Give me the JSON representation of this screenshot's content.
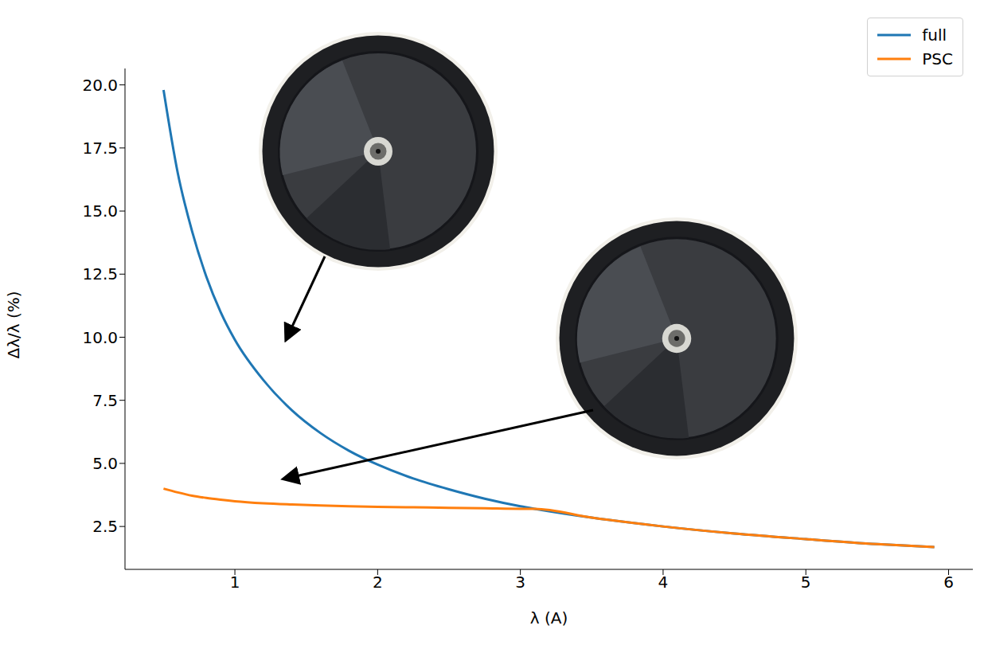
{
  "chart_data": {
    "type": "line",
    "x_label": "λ (A)",
    "y_label": "Δλ/λ (%)",
    "x": [
      0.5,
      0.6,
      0.7,
      0.8,
      0.9,
      1.0,
      1.2,
      1.4,
      1.6,
      1.8,
      2.0,
      2.25,
      2.5,
      2.75,
      3.0,
      3.1,
      3.5,
      4.0,
      4.5,
      5.0,
      5.5,
      5.9
    ],
    "series": [
      {
        "name": "full",
        "color": "#1f77b4",
        "values": [
          19.8,
          16.5,
          14.2,
          12.4,
          11.0,
          9.9,
          8.3,
          7.1,
          6.2,
          5.5,
          4.95,
          4.4,
          3.97,
          3.6,
          3.3,
          3.2,
          2.85,
          2.5,
          2.22,
          2.0,
          1.8,
          1.68
        ]
      },
      {
        "name": "PSC",
        "color": "#ff7f0e",
        "values": [
          4.0,
          3.85,
          3.72,
          3.63,
          3.56,
          3.5,
          3.42,
          3.37,
          3.33,
          3.3,
          3.28,
          3.26,
          3.24,
          3.22,
          3.2,
          3.2,
          2.85,
          2.5,
          2.22,
          2.0,
          1.8,
          1.68
        ]
      }
    ],
    "xlim": [
      0.23,
      6.17
    ],
    "ylim": [
      0.8,
      20.65
    ],
    "xticks": [
      1,
      2,
      3,
      4,
      5,
      6
    ],
    "yticks": [
      2.5,
      {
        "value": 5,
        "label": "5.0"
      },
      7.5,
      {
        "value": 10,
        "label": "10.0"
      },
      12.5,
      {
        "value": 15,
        "label": "15.0"
      },
      17.5,
      {
        "value": 20,
        "label": "20.0"
      }
    ],
    "legend": "upper right",
    "grid": false
  }
}
